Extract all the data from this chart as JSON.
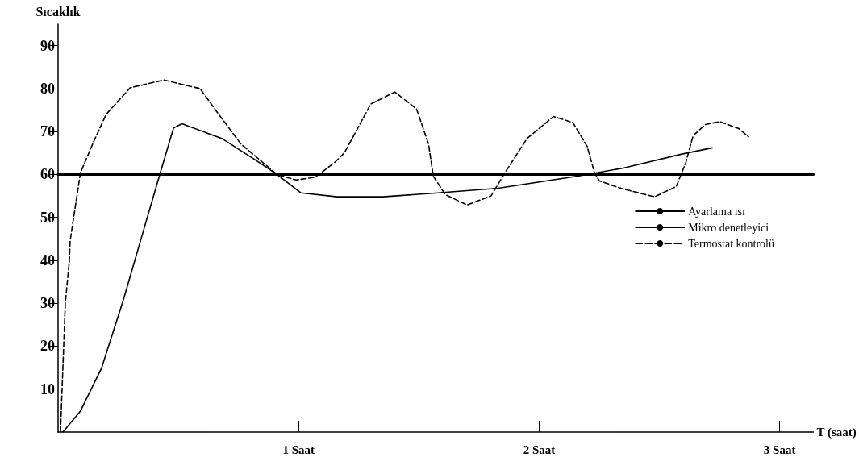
{
  "chart_data": {
    "type": "line",
    "ylabel": "Sıcaklık",
    "xlabel": "T (saat)",
    "xlim": [
      0,
      3.14
    ],
    "xticks": [
      {
        "value": 1,
        "label": "1 Saat"
      },
      {
        "value": 2,
        "label": "2 Saat"
      },
      {
        "value": 3,
        "label": "3 Saat"
      }
    ],
    "ylim": [
      0,
      95
    ],
    "yticks": [
      10,
      20,
      30,
      40,
      50,
      60,
      70,
      80,
      90
    ],
    "grid": false,
    "legend": "right",
    "marker": "none",
    "series": [
      {
        "name": "Ayarlama ısı",
        "color": "#000000",
        "line_style": "solid",
        "x": [
          0,
          3.14
        ],
        "values": [
          60,
          60
        ]
      },
      {
        "name": "Mikro denetleyici",
        "color": "#000000",
        "line_style": "solid",
        "x": [
          0.02,
          0.093,
          0.18,
          0.27,
          0.36,
          0.425,
          0.48,
          0.515,
          0.68,
          0.82,
          0.91,
          1.01,
          1.16,
          1.35,
          1.58,
          1.83,
          2.16,
          2.35,
          2.59,
          2.72
        ],
        "values": [
          0,
          4.9,
          14.8,
          30.5,
          47.9,
          60.4,
          70.8,
          71.8,
          68.4,
          63.4,
          60,
          55.7,
          54.8,
          54.8,
          55.7,
          56.8,
          59.6,
          61.5,
          64.7,
          66.2
        ]
      },
      {
        "name": "Termostat kontrolü",
        "color": "#000000",
        "line_style": "dashed",
        "x": [
          0.01,
          0.03,
          0.047,
          0.05,
          0.093,
          0.15,
          0.2,
          0.3,
          0.44,
          0.59,
          0.66,
          0.76,
          0.91,
          0.99,
          1.07,
          1.15,
          1.19,
          1.3,
          1.4,
          1.49,
          1.54,
          1.56,
          1.61,
          1.7,
          1.8,
          1.86,
          1.95,
          2.06,
          2.14,
          2.2,
          2.23,
          2.25,
          2.35,
          2.48,
          2.57,
          2.61,
          2.64,
          2.69,
          2.75,
          2.83,
          2.87
        ],
        "values": [
          0,
          30,
          40,
          44.5,
          60.4,
          67.9,
          74,
          80.2,
          82,
          80,
          74.6,
          67.1,
          60,
          58.7,
          59.4,
          62.8,
          65,
          76.4,
          79.2,
          75.3,
          67.1,
          59.6,
          55.3,
          52.9,
          55,
          60.6,
          68.4,
          73.5,
          72.1,
          66.5,
          60.4,
          58.5,
          56.6,
          54.8,
          57.2,
          62.8,
          69,
          71.6,
          72.3,
          70.7,
          68.8
        ]
      }
    ]
  }
}
